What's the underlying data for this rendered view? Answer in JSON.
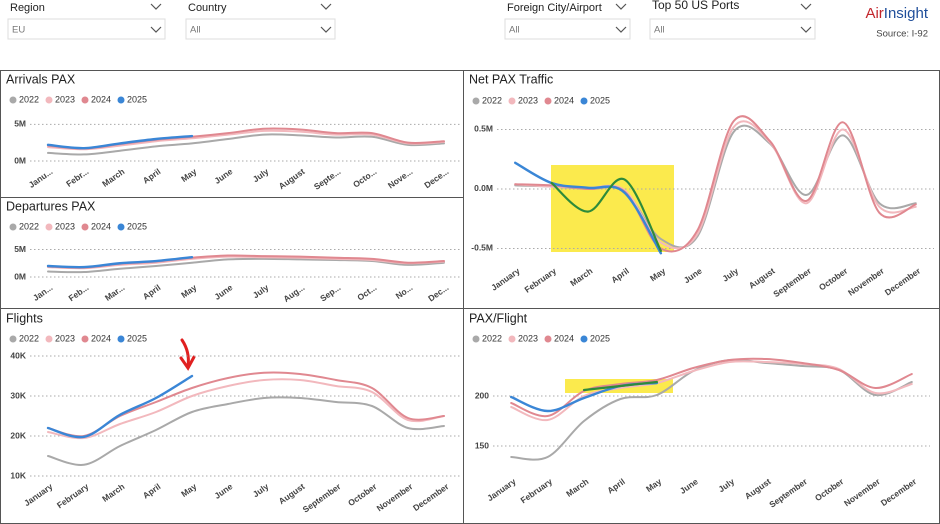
{
  "header": {
    "filters": [
      {
        "label": "Region",
        "value": "EU"
      },
      {
        "label": "Country",
        "value": "All"
      },
      {
        "label": "Foreign City/Airport",
        "value": "All"
      },
      {
        "label": "Top 50 US Ports",
        "value": "All"
      }
    ],
    "brand": [
      "Air",
      "Insight"
    ],
    "source": "Source: I-92"
  },
  "chart_data": [
    {
      "type": "line",
      "title": "Arrivals PAX",
      "categories": [
        "Janu...",
        "Febr...",
        "March",
        "April",
        "May",
        "June",
        "July",
        "August",
        "Septe...",
        "Octo...",
        "Nove...",
        "Dece..."
      ],
      "ylim": [
        0,
        6000000
      ],
      "yticks": [
        {
          "value": 0,
          "label": "0M"
        },
        {
          "value": 5000000,
          "label": "5M"
        }
      ],
      "grid": true,
      "series": [
        {
          "name": "2022",
          "color": "#a9a9a9",
          "values": [
            1100000,
            900000,
            1400000,
            2000000,
            2400000,
            3000000,
            3600000,
            3500000,
            3200000,
            3300000,
            2200000,
            2400000
          ]
        },
        {
          "name": "2023",
          "color": "#f2b8bd",
          "values": [
            1900000,
            1600000,
            2100000,
            2700000,
            3100000,
            3600000,
            4100000,
            4000000,
            3600000,
            3600000,
            2400000,
            2600000
          ]
        },
        {
          "name": "2024",
          "color": "#e08890",
          "values": [
            2100000,
            1700000,
            2300000,
            2900000,
            3300000,
            3800000,
            4400000,
            4300000,
            3800000,
            3800000,
            2500000,
            2700000
          ]
        },
        {
          "name": "2025",
          "color": "#3a86d6",
          "values": [
            2200000,
            1750000,
            2400000,
            3000000,
            3400000,
            null,
            null,
            null,
            null,
            null,
            null,
            null
          ]
        }
      ]
    },
    {
      "type": "line",
      "title": "Departures PAX",
      "categories": [
        "Jan...",
        "Feb...",
        "Mar...",
        "April",
        "May",
        "June",
        "July",
        "Aug...",
        "Sep...",
        "Oct...",
        "No...",
        "Dec..."
      ],
      "ylim": [
        0,
        6000000
      ],
      "yticks": [
        {
          "value": 0,
          "label": "0M"
        },
        {
          "value": 5000000,
          "label": "5M"
        }
      ],
      "grid": true,
      "series": [
        {
          "name": "2022",
          "color": "#a9a9a9",
          "values": [
            1000000,
            900000,
            1500000,
            2000000,
            2600000,
            3200000,
            3300000,
            3200000,
            3100000,
            2900000,
            2200000,
            2600000
          ]
        },
        {
          "name": "2023",
          "color": "#f2b8bd",
          "values": [
            1800000,
            1600000,
            2200000,
            2600000,
            3300000,
            3700000,
            3600000,
            3500000,
            3300000,
            3100000,
            2500000,
            2800000
          ]
        },
        {
          "name": "2024",
          "color": "#e08890",
          "values": [
            1900000,
            1700000,
            2400000,
            2800000,
            3500000,
            3900000,
            3800000,
            3700000,
            3500000,
            3300000,
            2600000,
            2900000
          ]
        },
        {
          "name": "2025",
          "color": "#3a86d6",
          "values": [
            2000000,
            1800000,
            2500000,
            2900000,
            3600000,
            null,
            null,
            null,
            null,
            null,
            null,
            null
          ]
        }
      ]
    },
    {
      "type": "line",
      "title": "Flights",
      "categories": [
        "January",
        "February",
        "March",
        "April",
        "May",
        "June",
        "July",
        "August",
        "September",
        "October",
        "November",
        "December"
      ],
      "ylim": [
        10000,
        42000
      ],
      "yticks": [
        {
          "value": 10000,
          "label": "10K"
        },
        {
          "value": 20000,
          "label": "20K"
        },
        {
          "value": 30000,
          "label": "30K"
        },
        {
          "value": 40000,
          "label": "40K"
        }
      ],
      "grid": true,
      "series": [
        {
          "name": "2022",
          "color": "#a9a9a9",
          "values": [
            15000,
            12800,
            17500,
            21500,
            26000,
            28000,
            29500,
            29500,
            28500,
            27500,
            22000,
            22500
          ]
        },
        {
          "name": "2023",
          "color": "#f2b8bd",
          "values": [
            21000,
            19500,
            23000,
            26000,
            30000,
            32500,
            34000,
            34000,
            32500,
            31000,
            24000,
            25000
          ]
        },
        {
          "name": "2024",
          "color": "#e08890",
          "values": [
            22000,
            20000,
            25000,
            28500,
            32000,
            34500,
            35800,
            35500,
            34000,
            32000,
            24500,
            25000
          ]
        },
        {
          "name": "2025",
          "color": "#3a86d6",
          "values": [
            22000,
            19800,
            25300,
            29500,
            35000,
            null,
            null,
            null,
            null,
            null,
            null,
            null
          ]
        }
      ]
    },
    {
      "type": "line",
      "title": "Net PAX Traffic",
      "categories": [
        "January",
        "February",
        "March",
        "April",
        "May",
        "June",
        "July",
        "August",
        "September",
        "October",
        "November",
        "December"
      ],
      "ylim": [
        -600000,
        650000
      ],
      "yticks": [
        {
          "value": -500000,
          "label": "-0.5M"
        },
        {
          "value": 0,
          "label": "0.0M"
        },
        {
          "value": 500000,
          "label": "0.5M"
        }
      ],
      "grid": true,
      "series": [
        {
          "name": "2022",
          "color": "#a9a9a9",
          "values": [
            30000,
            20000,
            0,
            -20000,
            -420000,
            -400000,
            480000,
            380000,
            -50000,
            450000,
            -120000,
            -120000
          ]
        },
        {
          "name": "2023",
          "color": "#f2b8bd",
          "values": [
            40000,
            20000,
            10000,
            -10000,
            -450000,
            -380000,
            520000,
            390000,
            -120000,
            500000,
            -150000,
            -150000
          ]
        },
        {
          "name": "2024",
          "color": "#e08890",
          "values": [
            40000,
            30000,
            0,
            -20000,
            -500000,
            -350000,
            570000,
            400000,
            -100000,
            560000,
            -200000,
            -130000
          ]
        },
        {
          "name": "2025",
          "color": "#3a86d6",
          "values": [
            220000,
            50000,
            10000,
            -30000,
            -540000,
            null,
            null,
            null,
            null,
            null,
            null,
            null
          ]
        },
        {
          "color": "#2e8b3a",
          "values": [
            null,
            50000,
            -190000,
            80000,
            -520000,
            null,
            null,
            null,
            null,
            null,
            null,
            null
          ]
        }
      ]
    },
    {
      "type": "line",
      "title": "PAX/Flight",
      "categories": [
        "January",
        "February",
        "March",
        "April",
        "May",
        "June",
        "July",
        "August",
        "September",
        "October",
        "November",
        "December"
      ],
      "ylim": [
        125,
        245
      ],
      "yticks": [
        150,
        200
      ],
      "grid": true,
      "series": [
        {
          "name": "2022",
          "color": "#a9a9a9",
          "values": [
            139,
            139,
            175,
            197,
            201,
            225,
            236,
            233,
            230,
            226,
            201,
            214
          ]
        },
        {
          "name": "2023",
          "color": "#f2b8bd",
          "values": [
            189,
            176,
            200,
            208,
            213,
            225,
            234,
            234,
            232,
            227,
            203,
            212
          ]
        },
        {
          "name": "2024",
          "color": "#e08890",
          "values": [
            193,
            180,
            205,
            212,
            216,
            228,
            236,
            237,
            233,
            226,
            208,
            222
          ]
        },
        {
          "name": "2025",
          "color": "#3a86d6",
          "values": [
            199,
            185,
            198,
            210,
            213,
            null,
            null,
            null,
            null,
            null,
            null,
            null
          ]
        },
        {
          "color": "#2e8b3a",
          "values": [
            null,
            null,
            206,
            210,
            214,
            null,
            null,
            null,
            null,
            null,
            null,
            null
          ]
        }
      ]
    }
  ]
}
